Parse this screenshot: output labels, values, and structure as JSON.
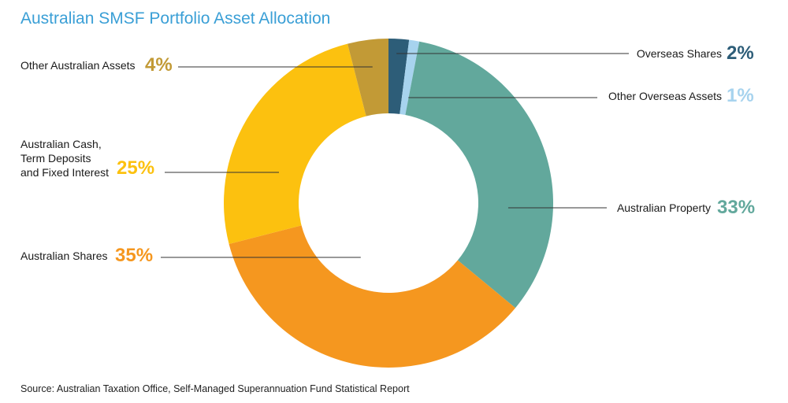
{
  "title": "Australian SMSF Portfolio Asset Allocation",
  "source": "Source: Australian Taxation Office, Self-Managed Superannuation Fund Statistical Report",
  "chart_data": {
    "type": "pie",
    "variant": "donut",
    "title": "Australian SMSF Portfolio Asset Allocation",
    "unit": "%",
    "slices": [
      {
        "name": "Overseas Shares",
        "value": 2,
        "label": "2%",
        "color": "#2d5d78"
      },
      {
        "name": "Other Overseas Assets",
        "value": 1,
        "label": "1%",
        "color": "#a7d3ee"
      },
      {
        "name": "Australian Property",
        "value": 33,
        "label": "33%",
        "color": "#62a89c"
      },
      {
        "name": "Australian Shares",
        "value": 35,
        "label": "35%",
        "color": "#f5971f"
      },
      {
        "name": "Australian Cash, Term Deposits and Fixed Interest",
        "label_lines": [
          "Australian Cash,",
          "Term Deposits",
          "and Fixed Interest"
        ],
        "value": 25,
        "label": "25%",
        "color": "#fcc10f"
      },
      {
        "name": "Other Australian Assets",
        "value": 4,
        "label": "4%",
        "color": "#c29a36"
      }
    ]
  }
}
